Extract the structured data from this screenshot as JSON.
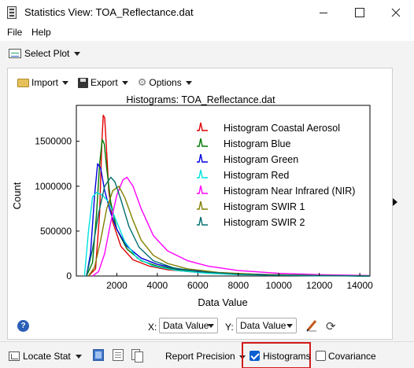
{
  "window": {
    "title": "Statistics View: TOA_Reflectance.dat"
  },
  "menu": {
    "file": "File",
    "help": "Help"
  },
  "toolbar": {
    "select_plot": "Select Plot"
  },
  "panel_toolbar": {
    "import": "Import",
    "export": "Export",
    "options": "Options"
  },
  "chart_data": {
    "type": "line",
    "title": "Histograms: TOA_Reflectance.dat",
    "xlabel": "Data Value",
    "ylabel": "Count",
    "xlim": [
      0,
      14500
    ],
    "ylim": [
      0,
      1900000
    ],
    "x_ticks": [
      2000,
      4000,
      6000,
      8000,
      10000,
      12000,
      14000
    ],
    "x_tick_labels": [
      "2000",
      "4000",
      "6000",
      "8000",
      "10000",
      "12000",
      "14000"
    ],
    "y_ticks": [
      0,
      500000,
      1000000,
      1500000
    ],
    "y_tick_labels": [
      "0",
      "500000",
      "1000000",
      "1500000"
    ],
    "grid": false,
    "legend_position": "top-right",
    "series": [
      {
        "name": "Histogram Coastal Aerosol",
        "color": "#e00000",
        "x": [
          600,
          950,
          1150,
          1250,
          1330,
          1400,
          1480,
          1600,
          1800,
          2200,
          2800,
          3600,
          4500,
          6000,
          8000,
          10000,
          12000,
          14500
        ],
        "values": [
          0,
          80000,
          700000,
          1450000,
          1790000,
          1760000,
          1450000,
          950000,
          600000,
          330000,
          180000,
          110000,
          70000,
          40000,
          20000,
          10000,
          5000,
          0
        ]
      },
      {
        "name": "Histogram Blue",
        "color": "#007a00",
        "x": [
          500,
          800,
          1000,
          1150,
          1280,
          1380,
          1500,
          1700,
          2000,
          2500,
          3200,
          4000,
          5000,
          7000,
          9000,
          12000,
          14500
        ],
        "values": [
          0,
          150000,
          700000,
          1250000,
          1520000,
          1470000,
          1200000,
          820000,
          520000,
          300000,
          170000,
          110000,
          70000,
          35000,
          15000,
          5000,
          0
        ]
      },
      {
        "name": "Histogram Green",
        "color": "#0000dd",
        "x": [
          500,
          700,
          900,
          1050,
          1200,
          1400,
          1700,
          2000,
          2500,
          3200,
          4000,
          5000,
          6500,
          8000,
          10000,
          12000,
          14500
        ],
        "values": [
          0,
          250000,
          900000,
          1250000,
          1200000,
          950000,
          700000,
          520000,
          330000,
          200000,
          130000,
          80000,
          45000,
          25000,
          12000,
          5000,
          0
        ]
      },
      {
        "name": "Histogram Red",
        "color": "#00e0e0",
        "x": [
          400,
          600,
          800,
          1000,
          1300,
          1600,
          2000,
          2400,
          3000,
          3800,
          5000,
          6500,
          8000,
          10000,
          12000,
          14500
        ],
        "values": [
          0,
          500000,
          880000,
          930000,
          900000,
          820000,
          600000,
          380000,
          200000,
          110000,
          60000,
          30000,
          15000,
          8000,
          3000,
          0
        ]
      },
      {
        "name": "Histogram Near Infrared (NIR)",
        "color": "#ff00ff",
        "x": [
          800,
          1100,
          1400,
          1700,
          2000,
          2300,
          2500,
          2800,
          3200,
          3800,
          4500,
          5500,
          6500,
          8000,
          10000,
          12000,
          14500
        ],
        "values": [
          0,
          50000,
          250000,
          600000,
          900000,
          1070000,
          1100000,
          1000000,
          750000,
          450000,
          280000,
          170000,
          110000,
          60000,
          30000,
          15000,
          5000
        ]
      },
      {
        "name": "Histogram SWIR 1",
        "color": "#808000",
        "x": [
          600,
          900,
          1200,
          1500,
          1800,
          2100,
          2400,
          2800,
          3200,
          3800,
          4500,
          5500,
          7000,
          9000,
          12000,
          14500
        ],
        "values": [
          0,
          100000,
          400000,
          750000,
          950000,
          1000000,
          870000,
          620000,
          400000,
          230000,
          140000,
          80000,
          40000,
          18000,
          6000,
          0
        ]
      },
      {
        "name": "Histogram SWIR 2",
        "color": "#006e6e",
        "x": [
          500,
          800,
          1100,
          1400,
          1700,
          1900,
          2200,
          2600,
          3100,
          3800,
          4800,
          6000,
          8000,
          10000,
          12000,
          14500
        ],
        "values": [
          0,
          300000,
          700000,
          1000000,
          1100000,
          1050000,
          850000,
          550000,
          320000,
          170000,
          90000,
          50000,
          20000,
          10000,
          4000,
          0
        ]
      }
    ]
  },
  "axis_controls": {
    "x_label": "X:",
    "y_label": "Y:",
    "x_value": "Data Value",
    "y_value": "Data Value"
  },
  "bottom": {
    "locate_stat": "Locate Stat",
    "report_precision": "Report Precision",
    "histograms": "Histograms",
    "histograms_checked": true,
    "covariance": "Covariance",
    "covariance_checked": false
  },
  "icons": {
    "app": "statistics-app-icon",
    "select_plot": "line-chart-icon",
    "import": "folder-icon",
    "export": "save-disk-icon",
    "options": "gear-icon",
    "help": "help-icon",
    "pencil": "pencil-icon",
    "refresh": "refresh-icon",
    "expand": "chevron-right-icon"
  }
}
